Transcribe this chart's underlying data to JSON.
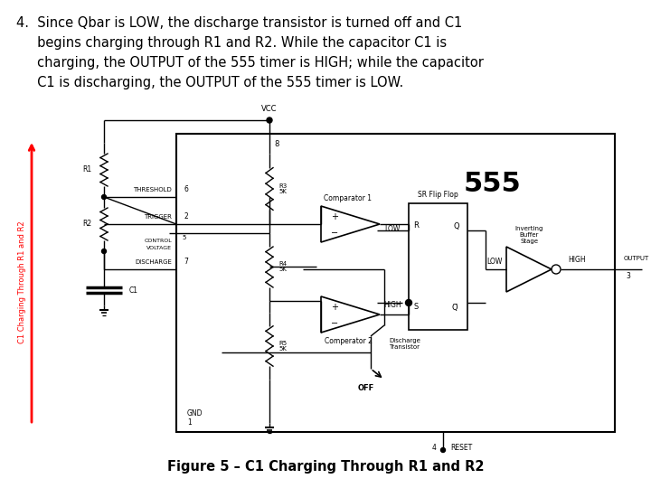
{
  "background_color": "#ffffff",
  "fig_width": 7.2,
  "fig_height": 5.4,
  "dpi": 100,
  "lines": [
    "4.  Since Qbar is LOW, the discharge transistor is turned off and C1",
    "     begins charging through R1 and R2. While the capacitor C1 is",
    "     charging, the OUTPUT of the 555 timer is HIGH; while the capacitor",
    "     C1 is discharging, the OUTPUT of the 555 timer is LOW."
  ],
  "figure_caption": "Figure 5 – C1 Charging Through R1 and R2"
}
